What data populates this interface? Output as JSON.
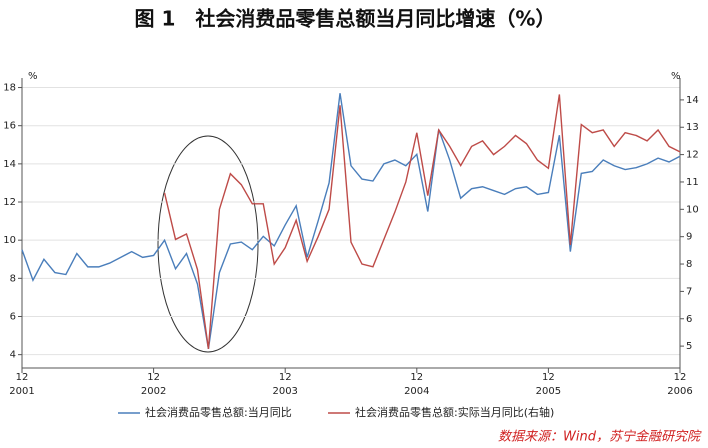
{
  "chart_data": {
    "type": "line",
    "title": "图 1　社会消费品零售总额当月同比增速（%）",
    "y_unit": "%",
    "y2_unit": "%",
    "categories": [
      "12\n2001",
      null,
      null,
      null,
      null,
      null,
      null,
      null,
      null,
      null,
      null,
      null,
      "12\n2002",
      null,
      null,
      null,
      null,
      null,
      null,
      null,
      null,
      null,
      null,
      null,
      "12\n2003",
      null,
      null,
      null,
      null,
      null,
      null,
      null,
      null,
      null,
      null,
      null,
      "12\n2004",
      null,
      null,
      null,
      null,
      null,
      null,
      null,
      null,
      null,
      null,
      null,
      "12\n2005",
      null,
      null,
      null,
      null,
      null,
      null,
      null,
      null,
      null,
      null,
      null,
      "12\n2006"
    ],
    "series": [
      {
        "name": "社会消费品零售总额:当月同比",
        "color": "#4a7ebb",
        "values": [
          9.5,
          7.9,
          9.0,
          8.3,
          8.2,
          9.3,
          8.6,
          8.6,
          8.8,
          9.1,
          9.4,
          9.1,
          9.2,
          10.0,
          8.5,
          9.3,
          7.7,
          4.3,
          8.3,
          9.8,
          9.9,
          9.5,
          10.2,
          9.7,
          10.8,
          11.8,
          9.1,
          11.0,
          13.0,
          17.7,
          13.9,
          13.2,
          13.1,
          14.0,
          14.2,
          13.9,
          14.5,
          11.5,
          15.8,
          14.2,
          12.2,
          12.7,
          12.8,
          12.6,
          12.4,
          12.7,
          12.8,
          12.4,
          12.5,
          15.5,
          9.4,
          13.5,
          13.6,
          14.2,
          13.9,
          13.7,
          13.8,
          14.0,
          14.3,
          14.1,
          14.4
        ]
      },
      {
        "name": "社会消费品零售总额:实际当月同比(右轴)",
        "color": "#be4b48",
        "axis": "y2",
        "values": [
          null,
          null,
          null,
          null,
          null,
          null,
          null,
          null,
          null,
          null,
          null,
          null,
          null,
          10.6,
          8.9,
          9.1,
          7.8,
          4.9,
          10.0,
          11.3,
          10.9,
          10.2,
          10.2,
          8.0,
          8.6,
          9.6,
          8.1,
          9.0,
          10.0,
          13.8,
          8.8,
          8.0,
          7.9,
          8.9,
          9.9,
          11.0,
          12.8,
          10.5,
          12.9,
          12.3,
          11.6,
          12.3,
          12.5,
          12.0,
          12.3,
          12.7,
          12.4,
          11.8,
          11.5,
          14.2,
          8.7,
          13.1,
          12.8,
          12.9,
          12.3,
          12.8,
          12.7,
          12.5,
          12.9,
          12.3,
          12.1
        ]
      }
    ],
    "ylim": [
      3.3,
      18.5
    ],
    "yticks": [
      4,
      6,
      8,
      10,
      12,
      14,
      16,
      18
    ],
    "y2lim": [
      4.2,
      14.8
    ],
    "y2ticks": [
      5,
      6,
      7,
      8,
      9,
      10,
      11,
      12,
      13,
      14
    ],
    "grid": true,
    "source": "数据来源：Wind，苏宁金融研究院"
  }
}
